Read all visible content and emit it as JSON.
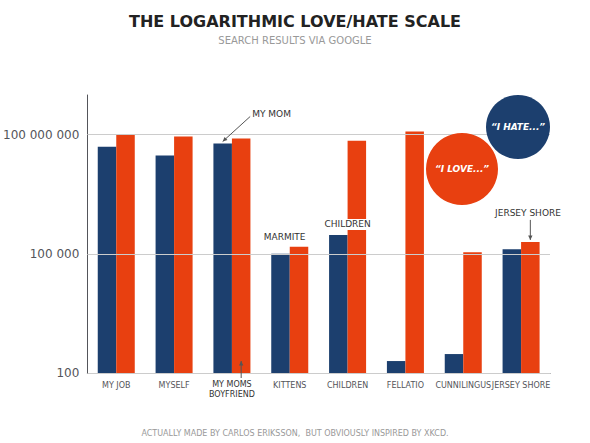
{
  "chart_data": {
    "type": "bar",
    "title": "THE LOGARITHMIC LOVE/HATE SCALE",
    "subtitle": "SEARCH RESULTS VIA GOOGLE",
    "categories": [
      "MY JOB",
      "MYSELF",
      null,
      "KITTENS",
      "CHILDREN",
      "FELLATIO",
      "CUNNILINGUS",
      "JERSEY SHORE"
    ],
    "series": [
      {
        "color": "#1c3f6e",
        "values": [
          50000000,
          30000000,
          60000000,
          100000,
          300000,
          200,
          300,
          130000
        ]
      },
      {
        "color": "#e84010",
        "values": [
          100000000,
          90000000,
          80000000,
          150000,
          70000000,
          120000000,
          110000,
          200000
        ]
      }
    ],
    "log": "y",
    "ylim": [
      100,
      1000000000
    ],
    "yticks": [
      100,
      {
        "value": 100000,
        "label": "100 000"
      },
      {
        "value": 100000000,
        "label": "100 000 000"
      }
    ],
    "grid": true,
    "annotations": [
      {
        "text": "MY MOM"
      },
      {
        "text": "MY MOMS\nBOYFRIEND"
      },
      {
        "text": "MARMITE"
      },
      {
        "text": "CHILDREN"
      },
      {
        "text": "JERSEY SHORE"
      },
      {
        "text": "“I LOVE...”",
        "color": "#e84010"
      },
      {
        "text": "“I HATE...”",
        "color": "#1c3f6e"
      },
      {
        "text": "ACTUALLY MADE BY CARLOS ERIKSSON,  BUT OBVIOUSLY INSPIRED BY XKCD."
      }
    ]
  }
}
